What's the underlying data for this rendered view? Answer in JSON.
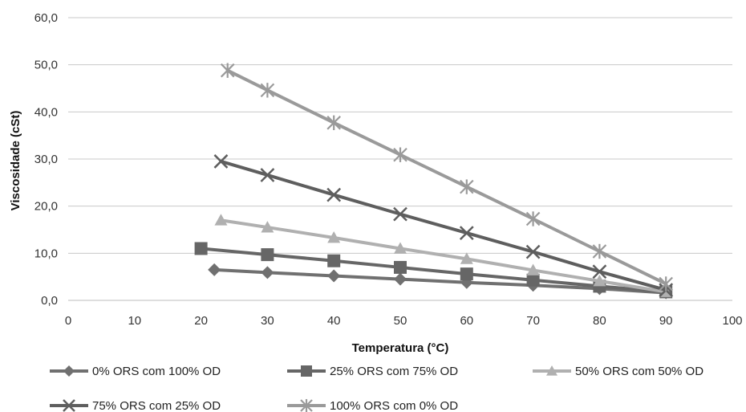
{
  "chart_data": {
    "type": "line",
    "title": "",
    "xlabel": "Temperatura (°C)",
    "ylabel": "Viscosidade (cSt)",
    "xlim": [
      0,
      100
    ],
    "ylim": [
      0,
      60
    ],
    "x_ticks": [
      0,
      10,
      20,
      30,
      40,
      50,
      60,
      70,
      80,
      90,
      100
    ],
    "x_tick_labels": [
      "0",
      "10",
      "20",
      "30",
      "40",
      "50",
      "60",
      "70",
      "80",
      "90",
      "100"
    ],
    "y_ticks": [
      0,
      10,
      20,
      30,
      40,
      50,
      60
    ],
    "y_tick_labels": [
      "0,0",
      "10,0",
      "20,0",
      "30,0",
      "40,0",
      "50,0",
      "60,0"
    ],
    "grid": "horizontal",
    "legend_position": "bottom",
    "series": [
      {
        "name": "0% ORS com 100% OD",
        "marker": "diamond",
        "color": "#707070",
        "x": [
          22,
          30,
          40,
          50,
          60,
          70,
          80,
          90
        ],
        "y": [
          6.5,
          5.9,
          5.2,
          4.5,
          3.8,
          3.2,
          2.5,
          1.6
        ]
      },
      {
        "name": "25% ORS com 75% OD",
        "marker": "square",
        "color": "#666666",
        "x": [
          20,
          30,
          40,
          50,
          60,
          70,
          80,
          90
        ],
        "y": [
          11.0,
          9.7,
          8.4,
          7.0,
          5.6,
          4.3,
          3.0,
          1.8
        ]
      },
      {
        "name": "50% ORS com 50% OD",
        "marker": "triangle",
        "color": "#b0b0b0",
        "x": [
          23,
          30,
          40,
          50,
          60,
          70,
          80,
          90
        ],
        "y": [
          17.0,
          15.5,
          13.3,
          11.0,
          8.8,
          6.4,
          4.1,
          1.8
        ]
      },
      {
        "name": "75% ORS com 25% OD",
        "marker": "x",
        "color": "#5e5e5e",
        "x": [
          23,
          30,
          40,
          50,
          60,
          70,
          80,
          90
        ],
        "y": [
          29.5,
          26.6,
          22.4,
          18.3,
          14.3,
          10.3,
          6.1,
          2.2
        ]
      },
      {
        "name": "100% ORS com 0% OD",
        "marker": "star",
        "color": "#9a9a9a",
        "x": [
          24,
          30,
          40,
          50,
          60,
          70,
          80,
          90
        ],
        "y": [
          48.8,
          44.6,
          37.7,
          30.9,
          24.1,
          17.3,
          10.4,
          3.5
        ]
      }
    ]
  }
}
